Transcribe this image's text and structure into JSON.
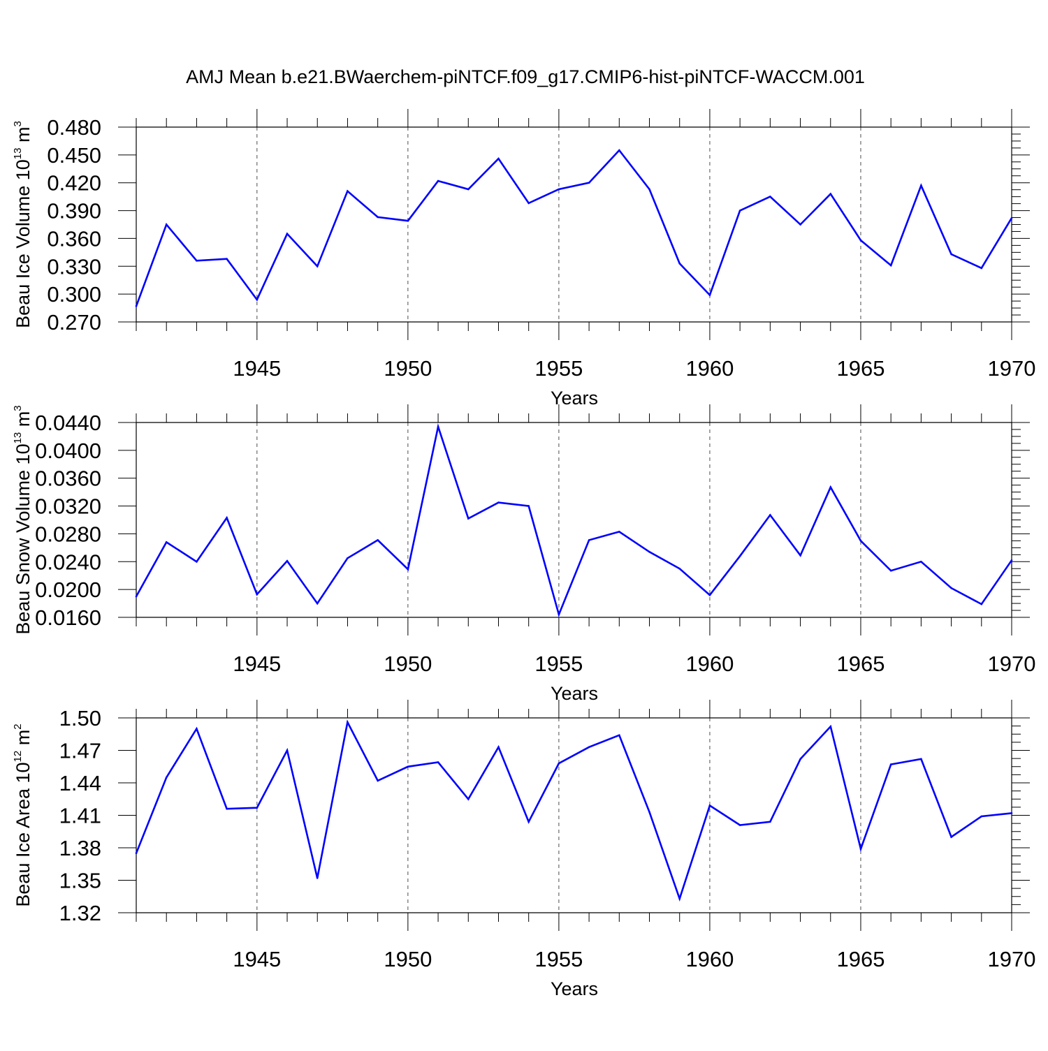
{
  "title": "AMJ Mean b.e21.BWaerchem-piNTCF.f09_g17.CMIP6-hist-piNTCF-WACCM.001",
  "colors": {
    "line": "#0000ff",
    "axis": "#000000",
    "grid": "#000000"
  },
  "chart_data": [
    {
      "type": "line",
      "ylabel": {
        "main": "Beau Ice Volume 10",
        "exp": "13",
        "unit": " m",
        "unit_exp": "3"
      },
      "xlabel": "Years",
      "xlim": [
        1941,
        1970
      ],
      "ylim": [
        0.27,
        0.48
      ],
      "yticks": [
        "0.270",
        "0.300",
        "0.330",
        "0.360",
        "0.390",
        "0.420",
        "0.450",
        "0.480"
      ],
      "xticks": [
        "1945",
        "1950",
        "1955",
        "1960",
        "1965",
        "1970"
      ],
      "x": [
        1941,
        1942,
        1943,
        1944,
        1945,
        1946,
        1947,
        1948,
        1949,
        1950,
        1951,
        1952,
        1953,
        1954,
        1955,
        1956,
        1957,
        1958,
        1959,
        1960,
        1961,
        1962,
        1963,
        1964,
        1965,
        1966,
        1967,
        1968,
        1969,
        1970
      ],
      "values": [
        0.287,
        0.375,
        0.336,
        0.338,
        0.294,
        0.365,
        0.33,
        0.411,
        0.383,
        0.379,
        0.422,
        0.413,
        0.446,
        0.398,
        0.413,
        0.42,
        0.455,
        0.413,
        0.333,
        0.299,
        0.39,
        0.405,
        0.375,
        0.408,
        0.358,
        0.331,
        0.417,
        0.343,
        0.328,
        0.382
      ]
    },
    {
      "type": "line",
      "ylabel": {
        "main": "Beau Snow Volume 10",
        "exp": "13",
        "unit": " m",
        "unit_exp": "3"
      },
      "xlabel": "Years",
      "xlim": [
        1941,
        1970
      ],
      "ylim": [
        0.016,
        0.044
      ],
      "yticks": [
        "0.0160",
        "0.0200",
        "0.0240",
        "0.0280",
        "0.0320",
        "0.0360",
        "0.0400",
        "0.0440"
      ],
      "xticks": [
        "1945",
        "1950",
        "1955",
        "1960",
        "1965",
        "1970"
      ],
      "x": [
        1941,
        1942,
        1943,
        1944,
        1945,
        1946,
        1947,
        1948,
        1949,
        1950,
        1951,
        1952,
        1953,
        1954,
        1955,
        1956,
        1957,
        1958,
        1959,
        1960,
        1961,
        1962,
        1963,
        1964,
        1965,
        1966,
        1967,
        1968,
        1969,
        1970
      ],
      "values": [
        0.019,
        0.0268,
        0.024,
        0.0303,
        0.0193,
        0.0241,
        0.018,
        0.0245,
        0.0271,
        0.0229,
        0.0434,
        0.0302,
        0.0325,
        0.032,
        0.0164,
        0.0271,
        0.0283,
        0.0254,
        0.023,
        0.0192,
        0.0248,
        0.0307,
        0.0249,
        0.0347,
        0.027,
        0.0227,
        0.024,
        0.0202,
        0.0179,
        0.0242
      ]
    },
    {
      "type": "line",
      "ylabel": {
        "main": "Beau Ice Area 10",
        "exp": "12",
        "unit": " m",
        "unit_exp": "2"
      },
      "xlabel": "Years",
      "xlim": [
        1941,
        1970
      ],
      "ylim": [
        1.32,
        1.5
      ],
      "yticks": [
        "1.32",
        "1.35",
        "1.38",
        "1.41",
        "1.44",
        "1.47",
        "1.50"
      ],
      "xticks": [
        "1945",
        "1950",
        "1955",
        "1960",
        "1965",
        "1970"
      ],
      "x": [
        1941,
        1942,
        1943,
        1944,
        1945,
        1946,
        1947,
        1948,
        1949,
        1950,
        1951,
        1952,
        1953,
        1954,
        1955,
        1956,
        1957,
        1958,
        1959,
        1960,
        1961,
        1962,
        1963,
        1964,
        1965,
        1966,
        1967,
        1968,
        1969,
        1970
      ],
      "values": [
        1.375,
        1.445,
        1.49,
        1.416,
        1.417,
        1.47,
        1.352,
        1.496,
        1.442,
        1.455,
        1.459,
        1.425,
        1.473,
        1.404,
        1.458,
        1.473,
        1.484,
        1.413,
        1.333,
        1.419,
        1.401,
        1.404,
        1.462,
        1.492,
        1.379,
        1.457,
        1.462,
        1.39,
        1.409,
        1.412
      ]
    }
  ]
}
